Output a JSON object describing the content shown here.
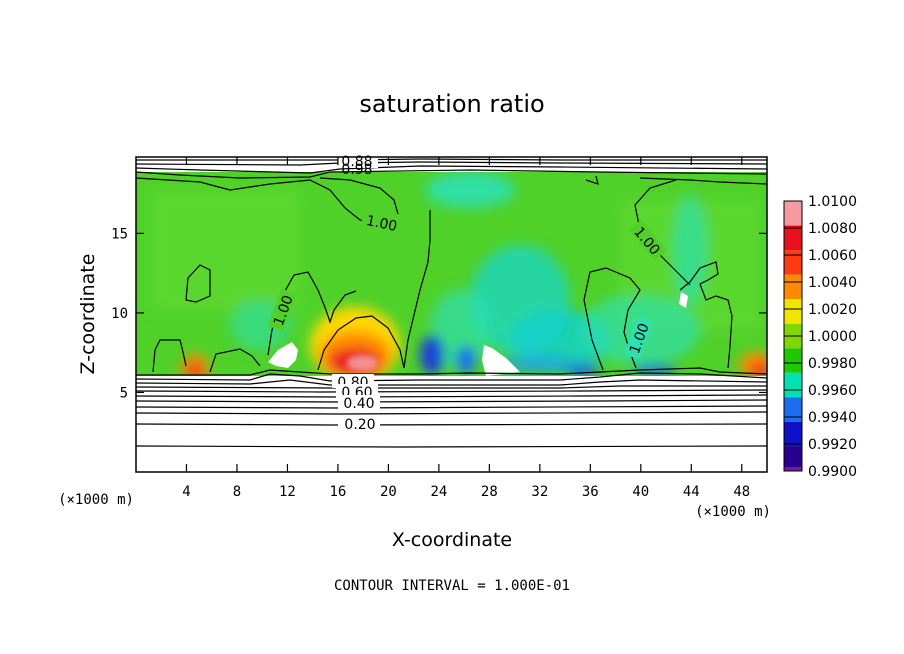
{
  "chart_data": {
    "type": "heatmap",
    "title": "saturation ratio",
    "xlabel": "X-coordinate",
    "ylabel": "Z-coordinate",
    "x_unit_left": "(×1000 m)",
    "x_unit_right": "(×1000 m)",
    "xlim": [
      0,
      50
    ],
    "ylim": [
      0,
      19.8
    ],
    "x_ticks": [
      4,
      8,
      12,
      16,
      20,
      24,
      28,
      32,
      36,
      40,
      44,
      48
    ],
    "y_ticks": [
      5,
      10,
      15
    ],
    "colorbar": {
      "levels": [
        "1.0100",
        "1.0080",
        "1.0060",
        "1.0040",
        "1.0020",
        "1.0000",
        "0.9980",
        "0.9960",
        "0.9940",
        "0.9920",
        "0.9900"
      ],
      "colors": [
        "#f59aa0",
        "#e8101e",
        "#ff3a14",
        "#ff8a00",
        "#f2e600",
        "#7ed800",
        "#1fc800",
        "#00e2b4",
        "#1e6cf0",
        "#1010c8",
        "#280090",
        "#7a1a9a"
      ]
    },
    "contour_interval_note": "CONTOUR INTERVAL = 1.000E-01",
    "contour_labels": [
      "1.00",
      "1.00",
      "1.00",
      "1.00",
      "0.80",
      "0.60",
      "0.40",
      "0.20",
      "0.88",
      "0.98"
    ],
    "background_value": "1.0000",
    "features": [
      {
        "kind": "maximum",
        "x": 17.5,
        "z": 6.3,
        "value": "1.0080"
      },
      {
        "kind": "maximum",
        "x": 5.0,
        "z": 6.2,
        "value": "1.0060"
      },
      {
        "kind": "maximum",
        "x": 49.0,
        "z": 6.2,
        "value": "1.0060"
      },
      {
        "kind": "minimum",
        "x": 23.0,
        "z": 6.5,
        "value": "0.9930"
      },
      {
        "kind": "minimum",
        "x": 25.5,
        "z": 6.5,
        "value": "0.9920"
      },
      {
        "kind": "minimum",
        "x": 36.5,
        "z": 6.5,
        "value": "0.9940"
      },
      {
        "kind": "minimum",
        "x": 41.5,
        "z": 6.3,
        "value": "0.9940"
      }
    ]
  }
}
